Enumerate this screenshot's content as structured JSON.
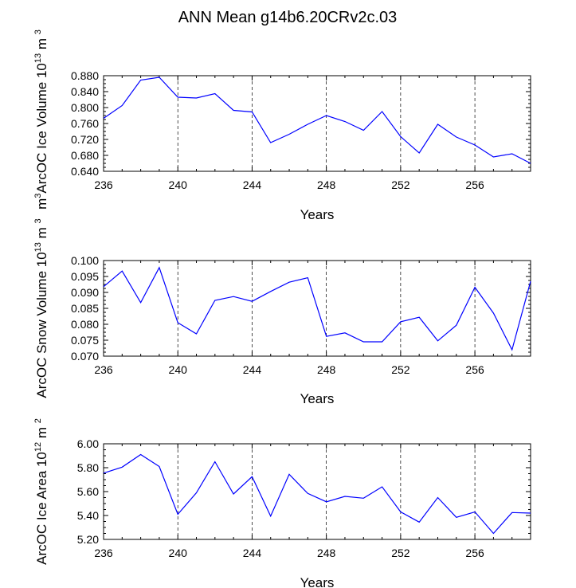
{
  "title": "ANN Mean g14b6.20CRv2c.03",
  "chart_data": [
    {
      "type": "line",
      "title": "",
      "xlabel": "Years",
      "ylabel": "ArcOC Ice Volume 10",
      "ylabel_exp": "13",
      "ylabel_unit": "m",
      "ylabel_unit_exp": "3",
      "ylabel_prefix": "m",
      "ylabel_prefix_exp": "3",
      "xlim": [
        236,
        259
      ],
      "ylim": [
        0.64,
        0.88
      ],
      "xticks": [
        236,
        240,
        244,
        248,
        252,
        256
      ],
      "yticks": [
        0.64,
        0.68,
        0.72,
        0.76,
        0.8,
        0.84,
        0.88
      ],
      "ytick_labels": [
        "0.640",
        "0.680",
        "0.720",
        "0.760",
        "0.800",
        "0.840",
        "0.880"
      ],
      "grid_x": [
        240,
        244,
        248,
        252,
        256
      ],
      "x": [
        236,
        237,
        238,
        239,
        240,
        241,
        242,
        243,
        244,
        245,
        246,
        247,
        248,
        249,
        250,
        251,
        252,
        253,
        254,
        255,
        256,
        257,
        258,
        259
      ],
      "y": [
        0.773,
        0.805,
        0.869,
        0.876,
        0.826,
        0.824,
        0.835,
        0.793,
        0.789,
        0.712,
        0.733,
        0.758,
        0.78,
        0.765,
        0.743,
        0.79,
        0.727,
        0.686,
        0.758,
        0.726,
        0.706,
        0.676,
        0.684,
        0.66
      ]
    },
    {
      "type": "line",
      "title": "",
      "xlabel": "Years",
      "ylabel": "ArcOC Snow Volume 10",
      "ylabel_exp": "13",
      "ylabel_unit": "m",
      "ylabel_unit_exp": "3",
      "xlim": [
        236,
        259
      ],
      "ylim": [
        0.07,
        0.1
      ],
      "xticks": [
        236,
        240,
        244,
        248,
        252,
        256
      ],
      "yticks": [
        0.07,
        0.075,
        0.08,
        0.085,
        0.09,
        0.095,
        0.1
      ],
      "ytick_labels": [
        "0.070",
        "0.075",
        "0.080",
        "0.085",
        "0.090",
        "0.095",
        "0.100"
      ],
      "grid_x": [
        240,
        244,
        248,
        252,
        256
      ],
      "x": [
        236,
        237,
        238,
        239,
        240,
        241,
        242,
        243,
        244,
        245,
        246,
        247,
        248,
        249,
        250,
        251,
        252,
        253,
        254,
        255,
        256,
        257,
        258,
        259
      ],
      "y": [
        0.0918,
        0.0967,
        0.0868,
        0.0978,
        0.0805,
        0.077,
        0.0875,
        0.0887,
        0.0872,
        0.0903,
        0.0932,
        0.0946,
        0.0762,
        0.0773,
        0.0745,
        0.0745,
        0.0808,
        0.0822,
        0.0748,
        0.0797,
        0.0916,
        0.0835,
        0.072,
        0.0935
      ]
    },
    {
      "type": "line",
      "title": "",
      "xlabel": "Years",
      "ylabel": "ArcOC Ice Area 10",
      "ylabel_exp": "12",
      "ylabel_unit": "m",
      "ylabel_unit_exp": "2",
      "xlim": [
        236,
        259
      ],
      "ylim": [
        5.2,
        6.0
      ],
      "xticks": [
        236,
        240,
        244,
        248,
        252,
        256
      ],
      "yticks": [
        5.2,
        5.4,
        5.6,
        5.8,
        6.0
      ],
      "ytick_labels": [
        "5.20",
        "5.40",
        "5.60",
        "5.80",
        "6.00"
      ],
      "grid_x": [
        240,
        244,
        248,
        252,
        256
      ],
      "x": [
        236,
        237,
        238,
        239,
        240,
        241,
        242,
        243,
        244,
        245,
        246,
        247,
        248,
        249,
        250,
        251,
        252,
        253,
        254,
        255,
        256,
        257,
        258,
        259
      ],
      "y": [
        5.755,
        5.805,
        5.91,
        5.81,
        5.41,
        5.59,
        5.85,
        5.58,
        5.725,
        5.395,
        5.745,
        5.585,
        5.515,
        5.56,
        5.545,
        5.64,
        5.43,
        5.345,
        5.55,
        5.385,
        5.43,
        5.25,
        5.425,
        5.42
      ]
    }
  ],
  "colors": {
    "line": "#0000ff",
    "axes": "#000000"
  }
}
